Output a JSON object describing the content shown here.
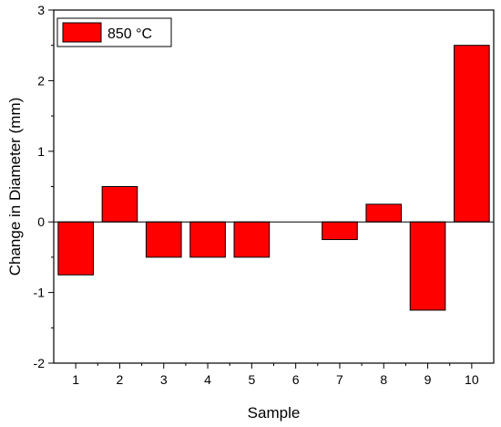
{
  "chart_data": {
    "type": "bar",
    "title": "",
    "xlabel": "Sample",
    "ylabel": "Change in Diameter (mm)",
    "categories": [
      "1",
      "2",
      "3",
      "4",
      "5",
      "6",
      "7",
      "8",
      "9",
      "10"
    ],
    "series": [
      {
        "name": "850 °C",
        "color": "#ff0000",
        "values": [
          -0.75,
          0.5,
          -0.5,
          -0.5,
          -0.5,
          0,
          -0.25,
          0.25,
          -1.25,
          2.5
        ]
      }
    ],
    "ylim": [
      -2,
      3
    ],
    "yticks": [
      -2,
      -1,
      0,
      1,
      2,
      3
    ],
    "ytick_labels": [
      "-2",
      "-1",
      "0",
      "1",
      "2",
      "3"
    ],
    "grid": false,
    "legend_position": "top-left",
    "bar_edge_color": "#000000"
  }
}
